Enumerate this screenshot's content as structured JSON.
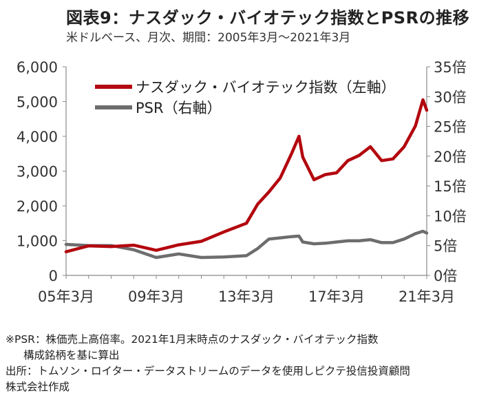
{
  "title": "図表9：ナスダック・バイオテック指数とPSRの推移",
  "subtitle": "米ドルベース、月次、期間：2005年3月～2021年3月",
  "notes": {
    "line1": "※PSR：株価売上高倍率。2021年1月末時点のナスダック・バイオテック指数",
    "line2": "構成銘柄を基に算出",
    "line3": "出所：トムソン・ロイター・データストリームのデータを使用しピクテ投信投資顧問",
    "line4": "株式会社作成"
  },
  "colors": {
    "index": "#b3080f",
    "psr": "#6d6d6d",
    "axis": "#888888"
  },
  "chart_data": {
    "type": "line",
    "x": [
      "05年3月",
      "06年3月",
      "07年3月",
      "08年3月",
      "09年3月",
      "10年3月",
      "11年3月",
      "12年3月",
      "13年3月",
      "13年9月",
      "14年3月",
      "14年9月",
      "15年3月",
      "15年7月",
      "15年9月",
      "16年3月",
      "16年9月",
      "17年3月",
      "17年9月",
      "18年3月",
      "18年9月",
      "19年3月",
      "19年9月",
      "20年3月",
      "20年9月",
      "21年1月",
      "21年3月"
    ],
    "x_ticks": [
      "05年3月",
      "09年3月",
      "13年3月",
      "17年3月",
      "21年3月"
    ],
    "left_axis": {
      "ylim": [
        0,
        6000
      ],
      "ticks": [
        "0",
        "1,000",
        "2,000",
        "3,000",
        "4,000",
        "5,000",
        "6,000"
      ]
    },
    "right_axis": {
      "ylim": [
        0,
        35
      ],
      "ticks": [
        "0倍",
        "5倍",
        "10倍",
        "15倍",
        "20倍",
        "25倍",
        "30倍",
        "35倍"
      ]
    },
    "series": [
      {
        "name": "ナスダック・バイオテック指数（左軸）",
        "axis": "left",
        "values": [
          680,
          850,
          830,
          870,
          720,
          880,
          980,
          1250,
          1500,
          2050,
          2400,
          2800,
          3500,
          4000,
          3400,
          2750,
          2900,
          2950,
          3300,
          3450,
          3700,
          3300,
          3350,
          3700,
          4300,
          5050,
          4750
        ]
      },
      {
        "name": "PSR（右軸）",
        "axis": "right",
        "values": [
          5.2,
          5.0,
          5.0,
          4.3,
          3.0,
          3.6,
          3.0,
          3.1,
          3.3,
          4.5,
          6.1,
          6.3,
          6.5,
          6.6,
          5.6,
          5.3,
          5.4,
          5.6,
          5.8,
          5.8,
          6.0,
          5.5,
          5.5,
          6.1,
          7.0,
          7.4,
          7.1
        ]
      }
    ]
  }
}
